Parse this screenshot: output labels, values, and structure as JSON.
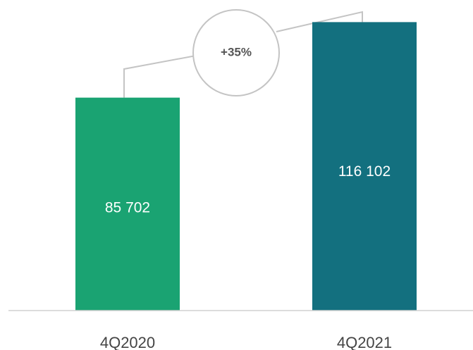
{
  "chart_data": {
    "type": "bar",
    "categories": [
      "4Q2020",
      "4Q2021"
    ],
    "values": [
      85702,
      116102
    ],
    "value_labels": [
      "85 702",
      "116 102"
    ],
    "colors": [
      "#1aa372",
      "#13707f"
    ],
    "growth_annotation": "+35%",
    "ylim": [
      0,
      125000
    ],
    "grid": false,
    "legend": "none"
  }
}
